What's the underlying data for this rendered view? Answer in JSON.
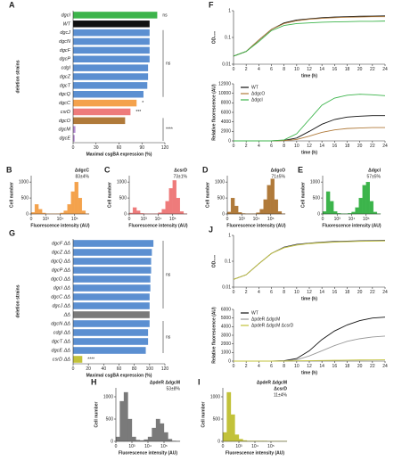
{
  "chart_data": [
    {
      "type": "hbar",
      "label": "A",
      "ylabel": "deletion strains",
      "xlabel": "Maximal csgBA expression (%)",
      "categories": [
        "dgcI",
        "WT",
        "dgcJ",
        "dgcN",
        "dgcF",
        "dgcP",
        "cdgI",
        "dgcZ",
        "dgcT",
        "dgcQ",
        "dgcC",
        "csrD",
        "dgcO",
        "dgcM",
        "dgcE"
      ],
      "values": [
        110,
        100,
        100,
        100,
        100,
        100,
        98,
        98,
        97,
        92,
        83,
        75,
        68,
        3,
        2
      ],
      "colors": [
        "#3cb44b",
        "#111111",
        "#5b8fd1",
        "#5b8fd1",
        "#5b8fd1",
        "#5b8fd1",
        "#5b8fd1",
        "#5b8fd1",
        "#5b8fd1",
        "#5b8fd1",
        "#f4a24c",
        "#ee7b7b",
        "#b07a3a",
        "#b58ad1",
        "#b58ad1"
      ],
      "xlim": [
        0,
        120
      ],
      "xticks": [
        0,
        30,
        60,
        90,
        120
      ],
      "annotations": [
        "ns",
        "ns",
        "*",
        "***",
        "****"
      ]
    },
    {
      "type": "line",
      "label": "F",
      "ylabel": "OD₆₀₀",
      "xlabel": "time (h)",
      "log_y": true,
      "x": [
        0,
        2,
        4,
        6,
        8,
        10,
        12,
        14,
        16,
        18,
        20,
        22,
        24
      ],
      "xlim": [
        0,
        24
      ],
      "xticks": [
        0,
        2,
        4,
        6,
        8,
        10,
        12,
        14,
        16,
        18,
        20,
        22,
        24
      ],
      "ylim": [
        0.01,
        1
      ],
      "yticks": [
        0.01,
        0.1,
        1
      ],
      "series": [
        {
          "name": "WT",
          "color": "#111111",
          "values": [
            0.02,
            0.03,
            0.08,
            0.2,
            0.35,
            0.45,
            0.5,
            0.55,
            0.58,
            0.6,
            0.62,
            0.63,
            0.64
          ]
        },
        {
          "name": "ΔdgcO",
          "color": "#b07a3a",
          "values": [
            0.02,
            0.03,
            0.08,
            0.2,
            0.33,
            0.42,
            0.48,
            0.52,
            0.55,
            0.57,
            0.58,
            0.6,
            0.6
          ]
        },
        {
          "name": "ΔdgcI",
          "color": "#3cb44b",
          "values": [
            0.02,
            0.03,
            0.07,
            0.18,
            0.28,
            0.33,
            0.35,
            0.37,
            0.38,
            0.39,
            0.4,
            0.4,
            0.41
          ]
        }
      ]
    },
    {
      "type": "line",
      "ylabel": "Relative fluorescence (AU)",
      "xlabel": "time (h)",
      "legend": "top-left",
      "x": [
        0,
        2,
        4,
        6,
        8,
        10,
        12,
        14,
        16,
        18,
        20,
        22,
        24
      ],
      "xlim": [
        0,
        24
      ],
      "xticks": [
        0,
        2,
        4,
        6,
        8,
        10,
        12,
        14,
        16,
        18,
        20,
        22,
        24
      ],
      "ylim": [
        0,
        12000
      ],
      "yticks": [
        0,
        2000,
        4000,
        6000,
        8000,
        10000,
        12000
      ],
      "series": [
        {
          "name": "WT",
          "color": "#111111",
          "values": [
            0,
            0,
            0,
            0,
            100,
            600,
            2000,
            3500,
            4500,
            5000,
            5200,
            5300,
            5300
          ]
        },
        {
          "name": "ΔdgcO",
          "color": "#b07a3a",
          "values": [
            0,
            0,
            0,
            0,
            50,
            300,
            1000,
            1800,
            2300,
            2600,
            2700,
            2800,
            2800
          ]
        },
        {
          "name": "ΔdgcI",
          "color": "#3cb44b",
          "values": [
            0,
            0,
            0,
            0,
            200,
            1500,
            4500,
            7500,
            9000,
            9600,
            9800,
            9700,
            9500
          ]
        }
      ]
    },
    {
      "type": "histogram",
      "label": "B",
      "strain": [
        "ΔdgcC"
      ],
      "percent": "83±4%",
      "ylabel": "Cell number",
      "xlabel": "Fluorescence intensity (AU)",
      "color": "#f4a24c",
      "bins": [
        2,
        2.25,
        2.5,
        2.75,
        3,
        3.25,
        3.5,
        3.75,
        4,
        4.25,
        4.5,
        4.75,
        5,
        5.25,
        5.5,
        5.75,
        6
      ],
      "counts": [
        50,
        300,
        150,
        30,
        10,
        5,
        5,
        10,
        30,
        100,
        300,
        700,
        1000,
        500,
        100,
        10
      ],
      "xlim": [
        2,
        6
      ],
      "xticks": [
        {
          "value": 2,
          "label": "0"
        },
        {
          "value": 3,
          "label": "10³"
        },
        {
          "value": 4,
          "label": "10⁴"
        },
        {
          "value": 5,
          "label": "10⁵"
        }
      ],
      "ylim": [
        0,
        1200
      ],
      "yticks": [
        0,
        500,
        1000
      ]
    },
    {
      "type": "histogram",
      "label": "C",
      "strain": [
        "ΔcsrD"
      ],
      "percent": "73±1%",
      "ylabel": "Cell number",
      "xlabel": "Fluorescence intensity (AU)",
      "color": "#ee7b7b",
      "bins": [
        2,
        2.25,
        2.5,
        2.75,
        3,
        3.25,
        3.5,
        3.75,
        4,
        4.25,
        4.5,
        4.75,
        5,
        5.25,
        5.5,
        5.75,
        6
      ],
      "counts": [
        30,
        200,
        100,
        20,
        10,
        5,
        5,
        10,
        40,
        150,
        400,
        800,
        1050,
        500,
        80,
        10
      ],
      "xlim": [
        2,
        6
      ],
      "xticks": [
        {
          "value": 2,
          "label": "0"
        },
        {
          "value": 3,
          "label": "10³"
        },
        {
          "value": 4,
          "label": "10⁴"
        },
        {
          "value": 5,
          "label": "10⁵"
        }
      ],
      "ylim": [
        0,
        1200
      ],
      "yticks": [
        0,
        500,
        1000
      ]
    },
    {
      "type": "histogram",
      "label": "D",
      "strain": [
        "ΔdgcO"
      ],
      "percent": "71±5%",
      "ylabel": "Cell number",
      "xlabel": "Fluorescence intensity (AU)",
      "color": "#b07a3a",
      "bins": [
        2,
        2.25,
        2.5,
        2.75,
        3,
        3.25,
        3.5,
        3.75,
        4,
        4.25,
        4.5,
        4.75,
        5,
        5.25,
        5.5,
        5.75,
        6
      ],
      "counts": [
        60,
        500,
        250,
        50,
        15,
        5,
        5,
        10,
        40,
        150,
        450,
        900,
        1100,
        450,
        80,
        10
      ],
      "xlim": [
        2,
        6
      ],
      "xticks": [
        {
          "value": 2,
          "label": "0"
        },
        {
          "value": 3,
          "label": "10³"
        },
        {
          "value": 4,
          "label": "10⁴"
        },
        {
          "value": 5,
          "label": "10⁵"
        }
      ],
      "ylim": [
        0,
        1200
      ],
      "yticks": [
        0,
        500,
        1000
      ]
    },
    {
      "type": "histogram",
      "label": "E",
      "strain": [
        "ΔdgcI"
      ],
      "percent": "57±5%",
      "ylabel": "Cell number",
      "xlabel": "Fluorescence intensity (AU)",
      "color": "#3cb44b",
      "bins": [
        2,
        2.25,
        2.5,
        2.75,
        3,
        3.25,
        3.5,
        3.75,
        4,
        4.25,
        4.5,
        4.75,
        5,
        5.25,
        5.5,
        5.75,
        6
      ],
      "counts": [
        80,
        700,
        400,
        80,
        20,
        10,
        10,
        20,
        60,
        200,
        500,
        900,
        1000,
        400,
        60,
        5
      ],
      "xlim": [
        2,
        6
      ],
      "xticks": [
        {
          "value": 2,
          "label": "0"
        },
        {
          "value": 3,
          "label": "10³"
        },
        {
          "value": 4,
          "label": "10⁴"
        },
        {
          "value": 5,
          "label": "10⁵"
        }
      ],
      "ylim": [
        0,
        1200
      ],
      "yticks": [
        0,
        500,
        1000
      ]
    },
    {
      "type": "hbar",
      "label": "G",
      "ylabel": "deletion strains",
      "xlabel": "Maximal csgBA expression (%)",
      "categories": [
        "dgcF ΔΔ",
        "dgcZ ΔΔ",
        "dgcQ ΔΔ",
        "dgcP ΔΔ",
        "dgcO ΔΔ",
        "dgcI ΔΔ",
        "dgcC ΔΔ",
        "dgcJ ΔΔ",
        "ΔΔ",
        "dgcN ΔΔ",
        "cdgI ΔΔ",
        "dgcT ΔΔ",
        "dgcE ΔΔ",
        "csrD ΔΔ"
      ],
      "values": [
        105,
        103,
        102,
        102,
        101,
        101,
        100,
        100,
        100,
        100,
        98,
        98,
        95,
        12
      ],
      "colors": [
        "#5b8fd1",
        "#5b8fd1",
        "#5b8fd1",
        "#5b8fd1",
        "#5b8fd1",
        "#5b8fd1",
        "#5b8fd1",
        "#5b8fd1",
        "#7a7a7a",
        "#5b8fd1",
        "#5b8fd1",
        "#5b8fd1",
        "#5b8fd1",
        "#c2c23a"
      ],
      "xlim": [
        0,
        120
      ],
      "xticks": [
        0,
        20,
        40,
        60,
        80,
        100,
        120
      ],
      "annotations": [
        "ns",
        "ns",
        "****"
      ]
    },
    {
      "type": "line",
      "label": "J",
      "ylabel": "OD₆₀₀",
      "xlabel": "time (h)",
      "log_y": true,
      "x": [
        0,
        2,
        4,
        6,
        8,
        10,
        12,
        14,
        16,
        18,
        20,
        22,
        24
      ],
      "xlim": [
        0,
        24
      ],
      "xticks": [
        0,
        2,
        4,
        6,
        8,
        10,
        12,
        14,
        16,
        18,
        20,
        22,
        24
      ],
      "ylim": [
        0.01,
        1
      ],
      "yticks": [
        0.01,
        0.1,
        1
      ],
      "series": [
        {
          "name": "WT",
          "color": "#111111",
          "values": [
            0.02,
            0.03,
            0.08,
            0.2,
            0.35,
            0.45,
            0.5,
            0.55,
            0.58,
            0.6,
            0.62,
            0.63,
            0.64
          ]
        },
        {
          "name": "ΔpdeR ΔdgcM",
          "color": "#999999",
          "values": [
            0.02,
            0.03,
            0.08,
            0.2,
            0.34,
            0.43,
            0.49,
            0.53,
            0.56,
            0.58,
            0.6,
            0.61,
            0.62
          ]
        },
        {
          "name": "ΔpdeR ΔdgcM ΔcsrD",
          "color": "#c2c23a",
          "values": [
            0.02,
            0.03,
            0.08,
            0.2,
            0.33,
            0.42,
            0.48,
            0.52,
            0.55,
            0.57,
            0.59,
            0.6,
            0.61
          ]
        }
      ]
    },
    {
      "type": "line",
      "ylabel": "Relative fluorescence (AU)",
      "xlabel": "time (h)",
      "legend": "top-left",
      "x": [
        0,
        2,
        4,
        6,
        8,
        10,
        12,
        14,
        16,
        18,
        20,
        22,
        24
      ],
      "xlim": [
        0,
        24
      ],
      "xticks": [
        0,
        2,
        4,
        6,
        8,
        10,
        12,
        14,
        16,
        18,
        20,
        22,
        24
      ],
      "ylim": [
        0,
        6000
      ],
      "yticks": [
        0,
        1000,
        2000,
        3000,
        4000,
        5000,
        6000
      ],
      "series": [
        {
          "name": "WT",
          "color": "#111111",
          "values": [
            0,
            0,
            0,
            0,
            50,
            300,
            1200,
            2500,
            3500,
            4200,
            4700,
            5000,
            5100
          ]
        },
        {
          "name": "ΔpdeR ΔdgcM",
          "color": "#999999",
          "values": [
            0,
            0,
            0,
            0,
            20,
            150,
            600,
            1200,
            1800,
            2300,
            2600,
            2800,
            2900
          ]
        },
        {
          "name": "ΔpdeR ΔdgcM ΔcsrD",
          "color": "#c2c23a",
          "values": [
            0,
            0,
            0,
            0,
            10,
            30,
            50,
            70,
            90,
            110,
            130,
            140,
            150
          ]
        }
      ]
    },
    {
      "type": "histogram",
      "label": "H",
      "strain": [
        "ΔpdeR ΔdgcM"
      ],
      "percent": "53±8%",
      "ylabel": "Cell number",
      "xlabel": "Fluorescence intensity (AU)",
      "color": "#7a7a7a",
      "bins": [
        2,
        2.25,
        2.5,
        2.75,
        3,
        3.25,
        3.5,
        3.75,
        4,
        4.25,
        4.5,
        4.75,
        5,
        5.25,
        5.5,
        5.75,
        6
      ],
      "counts": [
        100,
        900,
        1100,
        500,
        100,
        30,
        20,
        40,
        100,
        300,
        500,
        400,
        200,
        50,
        10,
        5
      ],
      "xlim": [
        2,
        6
      ],
      "xticks": [
        {
          "value": 2,
          "label": "0"
        },
        {
          "value": 3,
          "label": "10³"
        },
        {
          "value": 4,
          "label": "10⁴"
        },
        {
          "value": 5,
          "label": "10⁵"
        }
      ],
      "ylim": [
        0,
        1200
      ],
      "yticks": [
        0,
        500,
        1000
      ]
    },
    {
      "type": "histogram",
      "label": "I",
      "strain": [
        "ΔpdeR ΔdgcM",
        "ΔcsrD"
      ],
      "percent": "11±4%",
      "ylabel": "Cell number",
      "xlabel": "Fluorescence intensity (AU)",
      "color": "#c2c23a",
      "bins": [
        2,
        2.25,
        2.5,
        2.75,
        3,
        3.25,
        3.5,
        3.75,
        4,
        4.25,
        4.5,
        4.75,
        5,
        5.25,
        5.5,
        5.75,
        6
      ],
      "counts": [
        200,
        1100,
        600,
        150,
        50,
        20,
        10,
        10,
        10,
        10,
        10,
        5,
        5,
        5,
        5,
        5
      ],
      "xlim": [
        2,
        6
      ],
      "xticks": [
        {
          "value": 2,
          "label": "0"
        },
        {
          "value": 3,
          "label": "10³"
        },
        {
          "value": 4,
          "label": "10⁴"
        },
        {
          "value": 5,
          "label": "10⁵"
        }
      ],
      "ylim": [
        0,
        1200
      ],
      "yticks": [
        0,
        500,
        1000
      ]
    }
  ]
}
